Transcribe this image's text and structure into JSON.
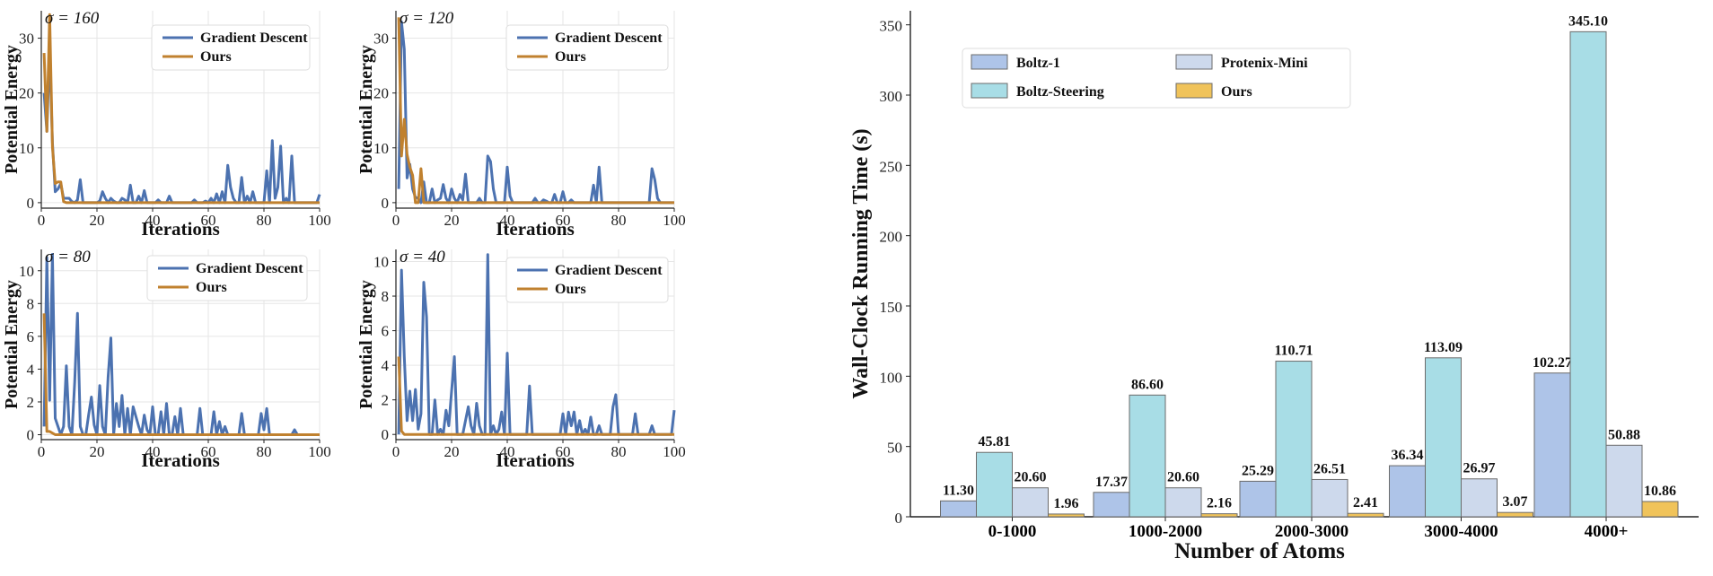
{
  "colors": {
    "gd": "#4c72b0",
    "ours": "#c0812f",
    "grid": "#e6e6e6",
    "boltz1": "#aec4e8",
    "boltz_steering": "#a8dde6",
    "protenix_mini": "#cdd9ec",
    "ours_bar": "#f0c35a",
    "bar_edge": "#6b6b6b"
  },
  "chart_data": [
    {
      "type": "line",
      "title": "σ = 160",
      "xlabel": "Iterations",
      "ylabel": "Potential Energy",
      "xlim": [
        0,
        100
      ],
      "ylim": [
        -1,
        35
      ],
      "xticks": [
        0,
        20,
        40,
        60,
        80,
        100
      ],
      "yticks": [
        0,
        10,
        20,
        30
      ],
      "legend": [
        "Gradient Descent",
        "Ours"
      ],
      "series": [
        {
          "name": "Gradient Descent",
          "x": [
            1,
            2,
            3,
            4,
            5,
            6,
            7,
            8,
            9,
            10,
            11,
            12,
            13,
            14,
            15,
            16,
            17,
            18,
            19,
            20,
            21,
            22,
            23,
            24,
            25,
            26,
            27,
            28,
            29,
            30,
            31,
            32,
            33,
            34,
            35,
            36,
            37,
            38,
            39,
            40,
            41,
            42,
            43,
            44,
            45,
            46,
            47,
            48,
            49,
            50,
            51,
            52,
            53,
            54,
            55,
            56,
            57,
            58,
            59,
            60,
            61,
            62,
            63,
            64,
            65,
            66,
            67,
            68,
            69,
            70,
            71,
            72,
            73,
            74,
            75,
            76,
            77,
            78,
            79,
            80,
            81,
            82,
            83,
            84,
            85,
            86,
            87,
            88,
            89,
            90,
            91,
            92,
            93,
            94,
            95,
            96,
            97,
            98,
            99,
            100
          ],
          "values": [
            20,
            13,
            28,
            11,
            2,
            2.5,
            3.5,
            0.8,
            0.8,
            0.8,
            0.2,
            0,
            0.5,
            4.2,
            0,
            0,
            0,
            0,
            0,
            0,
            0.3,
            2,
            0.8,
            0,
            0.8,
            0.3,
            0,
            0,
            0.8,
            0.5,
            0,
            3.2,
            0,
            0,
            1.2,
            0,
            2.2,
            0,
            0,
            0,
            0,
            0.5,
            0,
            0,
            0,
            1.2,
            0,
            0,
            0,
            0,
            0,
            0,
            0,
            0,
            0.5,
            0,
            0,
            0,
            0.3,
            0,
            0.8,
            0,
            1.6,
            0,
            2,
            0,
            6.8,
            2.8,
            0.8,
            0,
            0,
            4.6,
            0,
            1.2,
            0,
            2,
            0,
            0,
            0,
            0,
            5.8,
            0,
            11.3,
            0.8,
            2.8,
            10.3,
            0,
            0.8,
            0,
            8.5,
            0,
            0,
            0,
            0,
            0,
            0,
            0,
            0,
            0,
            1.5
          ]
        },
        {
          "name": "Ours",
          "x": [
            1,
            2,
            3,
            4,
            5,
            6,
            7,
            8,
            9,
            10,
            12,
            14,
            20,
            30,
            40,
            50,
            60,
            70,
            80,
            90,
            100
          ],
          "values": [
            27.3,
            13,
            34.3,
            10.2,
            3.5,
            3.8,
            3.8,
            0.2,
            0,
            0,
            0,
            0,
            0,
            0,
            0,
            0,
            0,
            0,
            0,
            0,
            0
          ]
        }
      ]
    },
    {
      "type": "line",
      "title": "σ = 120",
      "xlabel": "Iterations",
      "ylabel": "Potential Energy",
      "xlim": [
        0,
        100
      ],
      "ylim": [
        -1,
        35
      ],
      "xticks": [
        0,
        20,
        40,
        60,
        80,
        100
      ],
      "yticks": [
        0,
        10,
        20,
        30
      ],
      "legend": [
        "Gradient Descent",
        "Ours"
      ],
      "series": [
        {
          "name": "Gradient Descent",
          "x": [
            1,
            2,
            3,
            4,
            5,
            6,
            7,
            8,
            9,
            10,
            11,
            12,
            13,
            14,
            15,
            16,
            17,
            18,
            19,
            20,
            21,
            22,
            23,
            24,
            25,
            26,
            27,
            28,
            29,
            30,
            31,
            32,
            33,
            34,
            35,
            36,
            37,
            38,
            39,
            40,
            41,
            42,
            43,
            44,
            45,
            46,
            47,
            48,
            49,
            50,
            51,
            52,
            53,
            54,
            55,
            56,
            57,
            58,
            59,
            60,
            61,
            62,
            63,
            64,
            65,
            66,
            67,
            68,
            69,
            70,
            71,
            72,
            73,
            74,
            75,
            76,
            77,
            78,
            79,
            80,
            81,
            82,
            83,
            84,
            85,
            86,
            87,
            88,
            89,
            90,
            91,
            92,
            93,
            94,
            95,
            96,
            97,
            98,
            99,
            100
          ],
          "values": [
            2.5,
            33,
            28,
            4.5,
            7,
            2.5,
            1,
            0.8,
            0,
            3.8,
            0,
            0,
            2.5,
            0,
            0.5,
            0.8,
            3.3,
            0.8,
            0,
            2.5,
            0.8,
            0,
            1.5,
            0.5,
            5.2,
            0,
            0,
            0,
            0,
            0.8,
            0,
            0,
            8.5,
            7.5,
            2.5,
            0,
            0,
            0,
            0,
            6.5,
            1.2,
            0,
            0,
            0,
            0,
            0,
            0,
            0,
            0,
            0.8,
            0,
            0,
            0.5,
            0.3,
            0,
            0,
            1.5,
            0,
            0,
            2,
            0,
            0,
            0.5,
            0,
            0,
            0,
            0,
            0,
            0,
            0,
            3.2,
            0,
            6.5,
            0,
            0,
            0,
            0,
            0,
            0,
            0,
            0,
            0,
            0,
            0,
            0,
            0,
            0,
            0,
            0,
            0,
            0,
            6.2,
            4.2,
            0.8,
            0,
            0,
            0,
            0,
            0,
            0
          ]
        },
        {
          "name": "Ours",
          "x": [
            1,
            2,
            3,
            4,
            5,
            6,
            7,
            8,
            9,
            10,
            11,
            12,
            14,
            20,
            30,
            40,
            50,
            60,
            70,
            80,
            90,
            100
          ],
          "values": [
            33.8,
            8.5,
            15.2,
            8.8,
            6.5,
            5,
            0,
            0,
            6.2,
            0,
            0,
            0,
            0,
            0,
            0,
            0,
            0,
            0,
            0,
            0,
            0,
            0
          ]
        }
      ]
    },
    {
      "type": "line",
      "title": "σ = 80",
      "xlabel": "Iterations",
      "ylabel": "Potential Energy",
      "xlim": [
        0,
        100
      ],
      "ylim": [
        -0.3,
        11.3
      ],
      "xticks": [
        0,
        20,
        40,
        60,
        80,
        100
      ],
      "yticks": [
        0,
        2,
        4,
        6,
        8,
        10
      ],
      "legend": [
        "Gradient Descent",
        "Ours"
      ],
      "series": [
        {
          "name": "Gradient Descent",
          "x": [
            1,
            2,
            3,
            4,
            5,
            6,
            7,
            8,
            9,
            10,
            11,
            12,
            13,
            14,
            15,
            16,
            17,
            18,
            19,
            20,
            21,
            22,
            23,
            24,
            25,
            26,
            27,
            28,
            29,
            30,
            31,
            32,
            33,
            34,
            35,
            36,
            37,
            38,
            39,
            40,
            41,
            42,
            43,
            44,
            45,
            46,
            47,
            48,
            49,
            50,
            51,
            52,
            53,
            54,
            55,
            56,
            57,
            58,
            59,
            60,
            61,
            62,
            63,
            64,
            65,
            66,
            67,
            68,
            69,
            70,
            71,
            72,
            73,
            74,
            75,
            76,
            77,
            78,
            79,
            80,
            81,
            82,
            83,
            84,
            85,
            86,
            87,
            88,
            89,
            90,
            91,
            92,
            93,
            94,
            95,
            96,
            97,
            98,
            99,
            100
          ],
          "values": [
            0.5,
            10.8,
            2.1,
            11,
            1,
            0.5,
            0,
            0.5,
            4.2,
            0.5,
            0,
            3.2,
            7.4,
            0.5,
            0,
            0,
            1.2,
            2.3,
            0.6,
            0,
            3,
            0.5,
            0,
            3.5,
            5.9,
            0,
            1.9,
            0.5,
            2.4,
            0,
            1.6,
            0,
            1.7,
            1.1,
            0.5,
            0,
            1.2,
            0.3,
            0,
            1.7,
            0,
            0,
            1.4,
            0,
            1.9,
            0,
            0,
            1.1,
            0,
            1.6,
            0,
            0,
            0,
            0,
            0,
            0,
            1.6,
            0,
            0,
            0,
            0,
            1.4,
            0,
            0.8,
            0,
            0.5,
            0,
            0,
            0,
            0,
            0,
            1.3,
            0,
            0,
            0,
            0,
            0,
            0,
            1.3,
            0.3,
            1.6,
            0,
            0,
            0,
            0,
            0,
            0,
            0,
            0,
            0,
            0.3,
            0,
            0,
            0,
            0,
            0,
            0,
            0,
            0,
            0
          ]
        },
        {
          "name": "Ours",
          "x": [
            1,
            2,
            3,
            5,
            10,
            20,
            40,
            60,
            80,
            100
          ],
          "values": [
            7.4,
            0.2,
            0.2,
            0,
            0,
            0,
            0,
            0,
            0,
            0
          ]
        }
      ]
    },
    {
      "type": "line",
      "title": "σ = 40",
      "xlabel": "Iterations",
      "ylabel": "Potential Energy",
      "xlim": [
        0,
        100
      ],
      "ylim": [
        -0.3,
        10.7
      ],
      "xticks": [
        0,
        20,
        40,
        60,
        80,
        100
      ],
      "yticks": [
        0,
        2,
        4,
        6,
        8,
        10
      ],
      "legend": [
        "Gradient Descent",
        "Ours"
      ],
      "series": [
        {
          "name": "Gradient Descent",
          "x": [
            1,
            2,
            3,
            4,
            5,
            6,
            7,
            8,
            9,
            10,
            11,
            12,
            13,
            14,
            15,
            16,
            17,
            18,
            19,
            20,
            21,
            22,
            23,
            24,
            25,
            26,
            27,
            28,
            29,
            30,
            31,
            32,
            33,
            34,
            35,
            36,
            37,
            38,
            39,
            40,
            41,
            42,
            43,
            44,
            45,
            46,
            47,
            48,
            49,
            50,
            51,
            52,
            53,
            54,
            55,
            56,
            57,
            58,
            59,
            60,
            61,
            62,
            63,
            64,
            65,
            66,
            67,
            68,
            69,
            70,
            71,
            72,
            73,
            74,
            75,
            76,
            77,
            78,
            79,
            80,
            81,
            82,
            83,
            84,
            85,
            86,
            87,
            88,
            89,
            90,
            91,
            92,
            93,
            94,
            95,
            96,
            97,
            98,
            99,
            100
          ],
          "values": [
            0,
            9.5,
            4.5,
            0.8,
            2.5,
            0.8,
            2.6,
            0.3,
            1.2,
            8.8,
            6.8,
            0,
            0,
            2,
            0,
            0.3,
            0,
            1.4,
            0.5,
            2.5,
            4.5,
            0,
            0,
            0,
            0.8,
            1.6,
            0.5,
            0,
            1.8,
            0.5,
            0,
            0,
            10.4,
            0,
            0.5,
            0,
            0.3,
            1.3,
            0,
            4.7,
            0,
            0,
            0,
            0,
            0,
            0,
            0,
            2.8,
            0,
            0,
            0,
            0,
            0,
            0,
            0,
            0,
            0,
            0,
            0,
            1.2,
            0,
            1.3,
            0.5,
            1.3,
            0,
            0.8,
            0,
            0.3,
            0,
            1,
            0,
            0,
            0.5,
            0,
            0,
            0,
            0,
            1.6,
            2.3,
            0,
            0,
            0,
            0,
            0,
            0,
            1.2,
            0,
            0,
            0,
            0,
            0,
            0.5,
            0,
            0,
            0,
            0,
            0,
            0,
            0,
            1.4
          ]
        },
        {
          "name": "Ours",
          "x": [
            1,
            2,
            3,
            5,
            10,
            20,
            40,
            60,
            80,
            100
          ],
          "values": [
            4.5,
            0.2,
            0,
            0,
            0,
            0,
            0,
            0,
            0,
            0
          ]
        }
      ]
    },
    {
      "type": "bar",
      "title": "",
      "xlabel": "Number of Atoms",
      "ylabel": "Wall-Clock Running Time (s)",
      "ylim": [
        0,
        360
      ],
      "yticks": [
        0,
        50,
        100,
        150,
        200,
        250,
        300,
        350
      ],
      "categories": [
        "0-1000",
        "1000-2000",
        "2000-3000",
        "3000-4000",
        "4000+"
      ],
      "legend_position": "top-left",
      "series": [
        {
          "name": "Boltz-1",
          "values": [
            11.3,
            17.37,
            25.29,
            36.34,
            102.27
          ],
          "labels": [
            "11.30",
            "17.37",
            "25.29",
            "36.34",
            "102.27"
          ]
        },
        {
          "name": "Boltz-Steering",
          "values": [
            45.81,
            86.6,
            110.71,
            113.09,
            345.1
          ],
          "labels": [
            "45.81",
            "86.60",
            "110.71",
            "113.09",
            "345.10"
          ]
        },
        {
          "name": "Protenix-Mini",
          "values": [
            20.6,
            20.6,
            26.51,
            26.97,
            50.88
          ],
          "labels": [
            "20.60",
            "20.60",
            "26.51",
            "26.97",
            "50.88"
          ]
        },
        {
          "name": "Ours",
          "values": [
            1.96,
            2.16,
            2.41,
            3.07,
            10.86
          ],
          "labels": [
            "1.96",
            "2.16",
            "2.41",
            "3.07",
            "10.86"
          ]
        }
      ]
    }
  ]
}
